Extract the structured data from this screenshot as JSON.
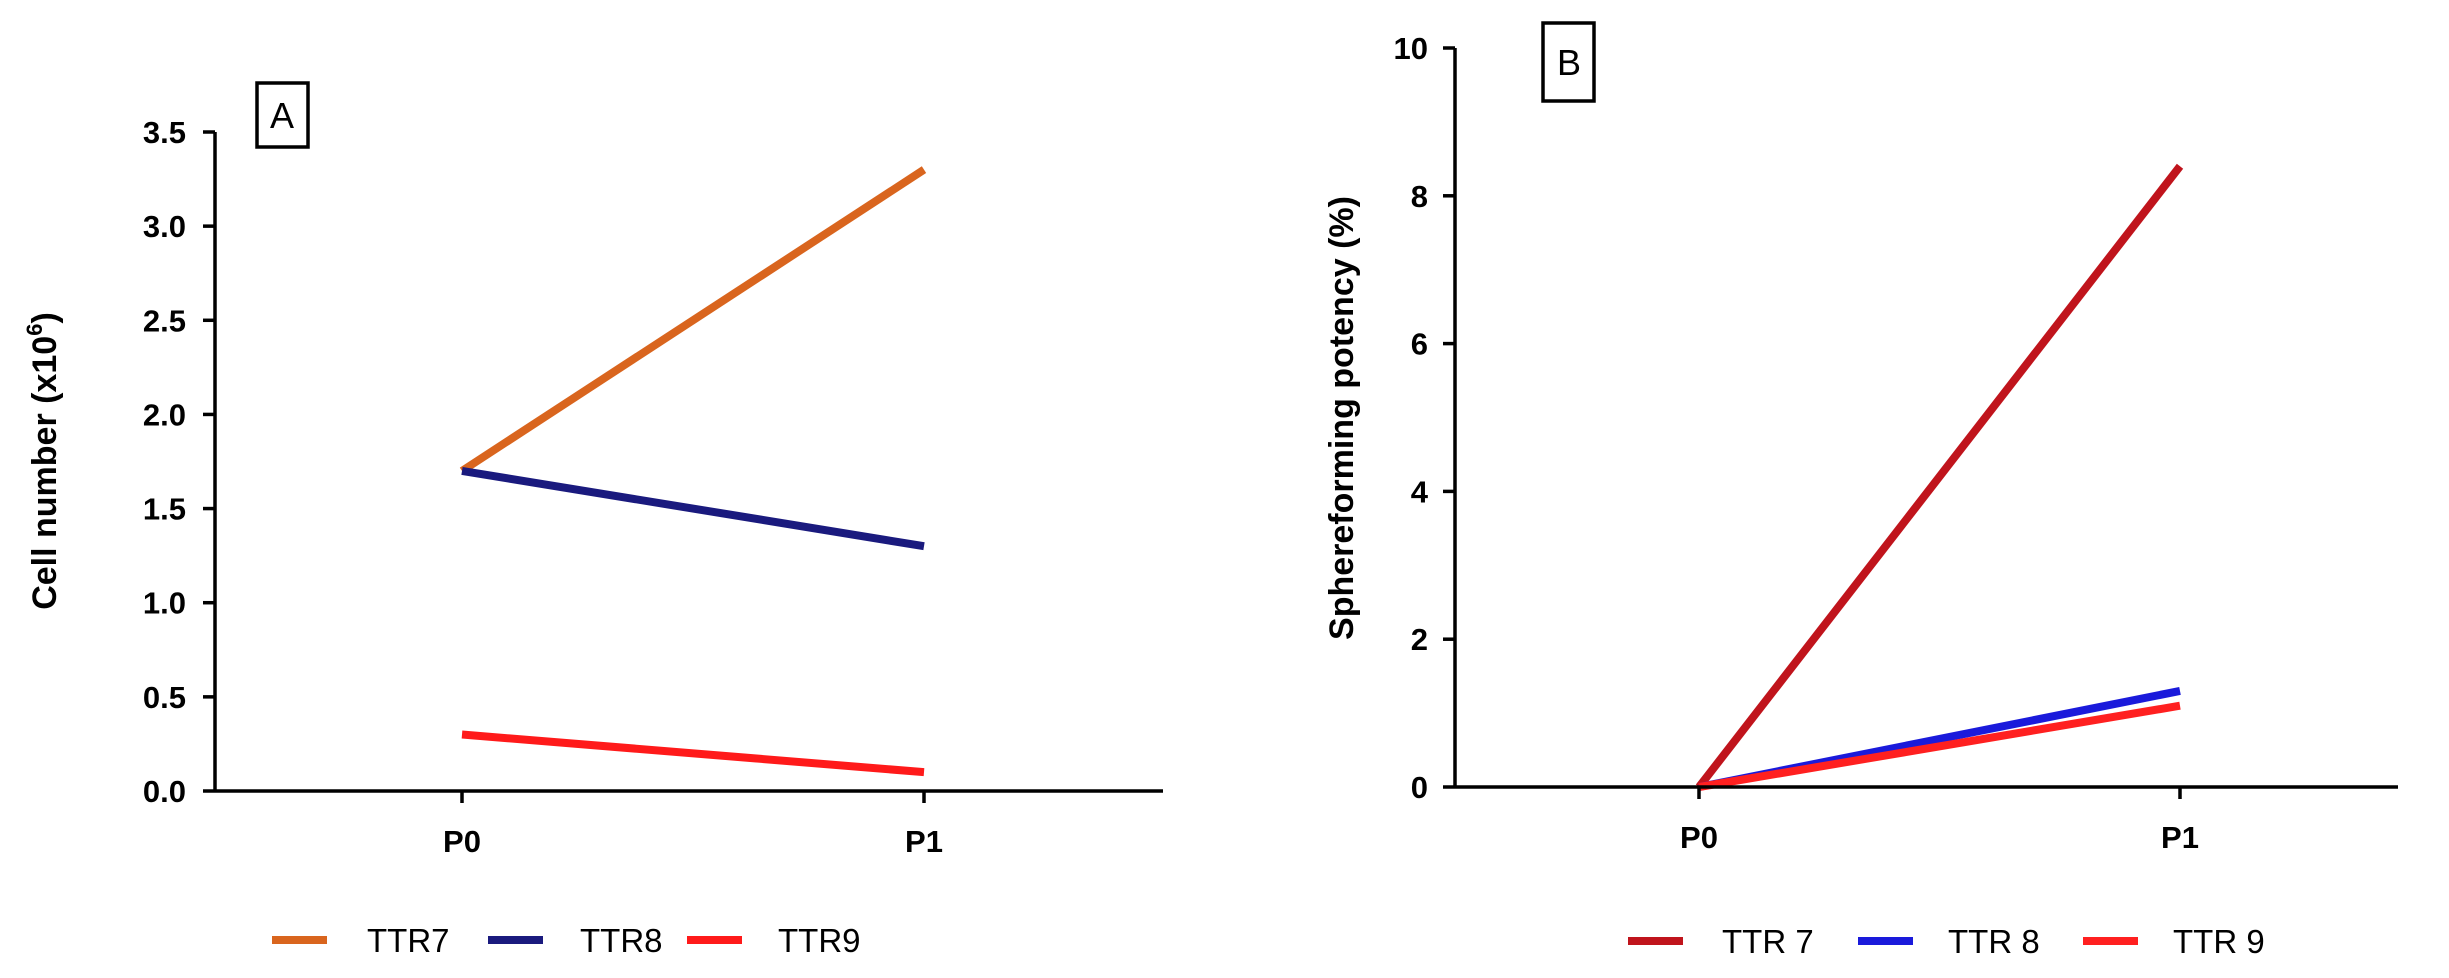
{
  "chart_data": [
    {
      "panel": "A",
      "type": "line",
      "title": "",
      "xlabel": "",
      "ylabel": "Cell number (x10",
      "ylabel_sup": "6",
      "ylabel_close": ")",
      "categories": [
        "P0",
        "P1"
      ],
      "ylim": [
        0,
        3.5
      ],
      "yticks": [
        "0.0",
        "0.5",
        "1.0",
        "1.5",
        "2.0",
        "2.5",
        "3.0",
        "3.5"
      ],
      "legend_position": "bottom",
      "series": [
        {
          "name": "TTR7",
          "values": [
            1.7,
            3.3
          ],
          "color": "#D9651E"
        },
        {
          "name": "TTR8",
          "values": [
            1.7,
            1.3
          ],
          "color": "#1A1A7E"
        },
        {
          "name": "TTR9",
          "values": [
            0.3,
            0.1
          ],
          "color": "#FF1A1A"
        }
      ]
    },
    {
      "panel": "B",
      "type": "line",
      "title": "",
      "xlabel": "",
      "ylabel": "Sphereforming potency (%)",
      "categories": [
        "P0",
        "P1"
      ],
      "ylim": [
        0,
        10
      ],
      "yticks": [
        "0",
        "2",
        "4",
        "6",
        "8",
        "10"
      ],
      "legend_position": "bottom",
      "series": [
        {
          "name": "TTR 7",
          "values": [
            0,
            8.4
          ],
          "color": "#C0141C"
        },
        {
          "name": "TTR 8",
          "values": [
            0,
            1.3
          ],
          "color": "#1A1ADB"
        },
        {
          "name": "TTR 9",
          "values": [
            0,
            1.1
          ],
          "color": "#FF2020"
        }
      ]
    }
  ]
}
